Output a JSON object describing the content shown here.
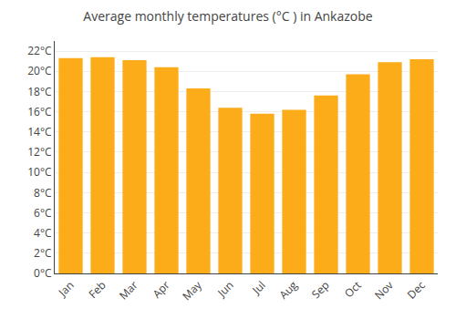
{
  "chart_data": {
    "type": "bar",
    "title": "Average monthly temperatures (°C ) in Ankazobe",
    "categories": [
      "Jan",
      "Feb",
      "Mar",
      "Apr",
      "May",
      "Jun",
      "Jul",
      "Aug",
      "Sep",
      "Oct",
      "Nov",
      "Dec"
    ],
    "values": [
      21.3,
      21.4,
      21.1,
      20.4,
      18.3,
      16.4,
      15.8,
      16.2,
      17.6,
      19.7,
      20.9,
      21.2
    ],
    "color": "#FBAC18",
    "ylim": [
      0,
      23
    ],
    "yticks": [
      {
        "value": 0,
        "label": "0°C"
      },
      {
        "value": 2,
        "label": "2°C"
      },
      {
        "value": 4,
        "label": "4°C"
      },
      {
        "value": 6,
        "label": "6°C"
      },
      {
        "value": 8,
        "label": "8°C"
      },
      {
        "value": 10,
        "label": "10°C"
      },
      {
        "value": 12,
        "label": "12°C"
      },
      {
        "value": 14,
        "label": "14°C"
      },
      {
        "value": 16,
        "label": "16°C"
      },
      {
        "value": 18,
        "label": "18°C"
      },
      {
        "value": 20,
        "label": "20°C"
      },
      {
        "value": 22,
        "label": "22°C"
      }
    ],
    "grid": true
  }
}
